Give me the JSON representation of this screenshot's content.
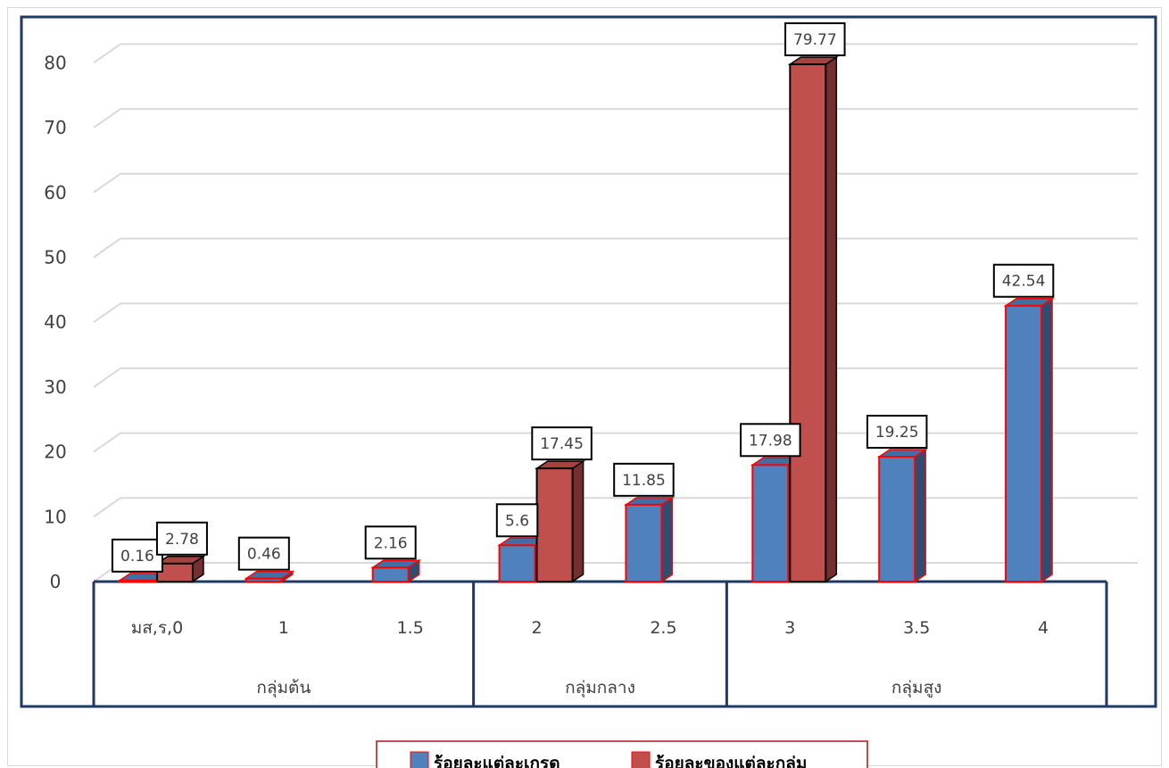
{
  "chart_data": {
    "type": "bar",
    "title": "",
    "xlabel": "",
    "ylabel": "",
    "ylim": [
      0,
      80
    ],
    "yticks": [
      0,
      10,
      20,
      30,
      40,
      50,
      60,
      70,
      80
    ],
    "grid": true,
    "legend_position": "bottom",
    "categories": [
      "มส,ร,0",
      "1",
      "1.5",
      "2",
      "2.5",
      "3",
      "3.5",
      "4"
    ],
    "groups": [
      {
        "label": "กลุ่มต้น",
        "categories": [
          "มส,ร,0",
          "1",
          "1.5"
        ]
      },
      {
        "label": "กลุ่มกลาง",
        "categories": [
          "2",
          "2.5"
        ]
      },
      {
        "label": "กลุ่มสูง",
        "categories": [
          "3",
          "3.5",
          "4"
        ]
      }
    ],
    "series": [
      {
        "name": "ร้อยละแต่ละเกรด",
        "color": "#4F81BD",
        "values": [
          0.16,
          0.46,
          2.16,
          5.6,
          11.85,
          17.98,
          19.25,
          42.54
        ]
      },
      {
        "name": "ร้อยละของแต่ละกลุ่ม",
        "color": "#C0504D",
        "values": [
          2.78,
          null,
          null,
          17.45,
          null,
          79.77,
          null,
          null
        ]
      }
    ]
  }
}
